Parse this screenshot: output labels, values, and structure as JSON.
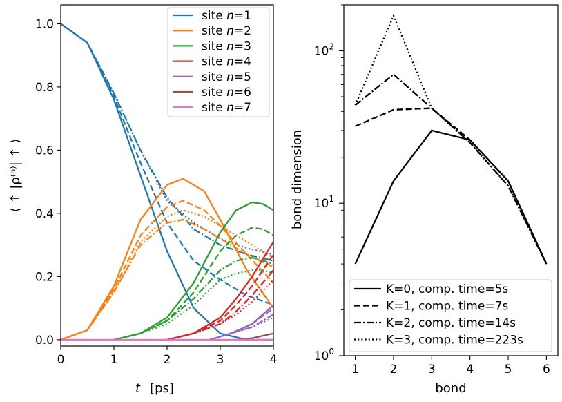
{
  "chart_data": [
    {
      "type": "line",
      "xlabel_var": "t",
      "xlabel_unit": "[ps]",
      "ylabel": "⟨ ↑ |ρ⁽ⁿ⁾| ↑ ⟩",
      "xlim": [
        0,
        4
      ],
      "ylim": [
        -0.02,
        1.06
      ],
      "xticks": [
        "0",
        "1",
        "2",
        "3",
        "4"
      ],
      "yticks": [
        "0.0",
        "0.2",
        "0.4",
        "0.6",
        "0.8",
        "1.0"
      ],
      "legend_position": "upper-right",
      "legend": [
        {
          "label": "site n=1",
          "prefix": "site ",
          "var": "n",
          "suffix": "=1",
          "color": "#1f77b4"
        },
        {
          "label": "site n=2",
          "prefix": "site ",
          "var": "n",
          "suffix": "=2",
          "color": "#ff7f0e"
        },
        {
          "label": "site n=3",
          "prefix": "site ",
          "var": "n",
          "suffix": "=3",
          "color": "#2ca02c"
        },
        {
          "label": "site n=4",
          "prefix": "site ",
          "var": "n",
          "suffix": "=4",
          "color": "#d62728"
        },
        {
          "label": "site n=5",
          "prefix": "site ",
          "var": "n",
          "suffix": "=5",
          "color": "#9467bd"
        },
        {
          "label": "site n=6",
          "prefix": "site ",
          "var": "n",
          "suffix": "=6",
          "color": "#8c564b"
        },
        {
          "label": "site n=7",
          "prefix": "site ",
          "var": "n",
          "suffix": "=7",
          "color": "#e377c2"
        }
      ],
      "line_styles": [
        "solid",
        "dashed",
        "dashdot",
        "dotted"
      ],
      "series": [
        {
          "name": "site n=1",
          "K": 0,
          "color": "#1f77b4",
          "style": "solid",
          "x": [
            0,
            0.5,
            1,
            1.5,
            2,
            2.5,
            3,
            3.5,
            4
          ],
          "y": [
            1.0,
            0.94,
            0.76,
            0.52,
            0.28,
            0.1,
            0.02,
            0.0,
            0.0
          ]
        },
        {
          "name": "site n=1",
          "K": 1,
          "color": "#1f77b4",
          "style": "dashed",
          "x": [
            0,
            0.5,
            1,
            1.5,
            2,
            2.5,
            3,
            3.5,
            4
          ],
          "y": [
            1.0,
            0.94,
            0.77,
            0.56,
            0.37,
            0.25,
            0.19,
            0.14,
            0.11
          ]
        },
        {
          "name": "site n=1",
          "K": 2,
          "color": "#1f77b4",
          "style": "dashdot",
          "x": [
            0,
            0.5,
            1,
            1.5,
            2,
            2.5,
            3,
            3.5,
            4
          ],
          "y": [
            1.0,
            0.94,
            0.78,
            0.6,
            0.45,
            0.35,
            0.3,
            0.27,
            0.25
          ]
        },
        {
          "name": "site n=1",
          "K": 3,
          "color": "#1f77b4",
          "style": "dotted",
          "x": [
            0,
            0.5,
            1,
            1.5,
            2,
            2.5,
            3,
            3.5,
            4
          ],
          "y": [
            1.0,
            0.94,
            0.78,
            0.6,
            0.44,
            0.37,
            0.32,
            0.29,
            0.27
          ]
        },
        {
          "name": "site n=2",
          "K": 0,
          "color": "#ff7f0e",
          "style": "solid",
          "x": [
            0,
            0.5,
            1,
            1.5,
            2,
            2.3,
            2.7,
            3,
            3.5,
            4
          ],
          "y": [
            0.0,
            0.03,
            0.17,
            0.38,
            0.49,
            0.51,
            0.47,
            0.38,
            0.22,
            0.1
          ]
        },
        {
          "name": "site n=2",
          "K": 1,
          "color": "#ff7f0e",
          "style": "dashed",
          "x": [
            0,
            0.5,
            1,
            1.5,
            2,
            2.3,
            2.7,
            3,
            3.5,
            4
          ],
          "y": [
            0.0,
            0.03,
            0.16,
            0.33,
            0.42,
            0.44,
            0.41,
            0.36,
            0.27,
            0.18
          ]
        },
        {
          "name": "site n=2",
          "K": 2,
          "color": "#ff7f0e",
          "style": "dashdot",
          "x": [
            0,
            0.5,
            1,
            1.5,
            2,
            2.3,
            2.7,
            3,
            3.5,
            4
          ],
          "y": [
            0.0,
            0.03,
            0.15,
            0.3,
            0.37,
            0.38,
            0.35,
            0.32,
            0.27,
            0.23
          ]
        },
        {
          "name": "site n=2",
          "K": 3,
          "color": "#ff7f0e",
          "style": "dotted",
          "x": [
            0,
            0.5,
            1,
            1.5,
            2,
            2.3,
            2.7,
            3,
            3.5,
            4
          ],
          "y": [
            0.0,
            0.03,
            0.15,
            0.31,
            0.39,
            0.41,
            0.39,
            0.36,
            0.31,
            0.26
          ]
        },
        {
          "name": "site n=3",
          "K": 0,
          "color": "#2ca02c",
          "style": "solid",
          "x": [
            1,
            1.5,
            2,
            2.5,
            3,
            3.3,
            3.6,
            3.8,
            4
          ],
          "y": [
            0.0,
            0.02,
            0.07,
            0.18,
            0.34,
            0.41,
            0.435,
            0.43,
            0.41
          ]
        },
        {
          "name": "site n=3",
          "K": 1,
          "color": "#2ca02c",
          "style": "dashed",
          "x": [
            1,
            1.5,
            2,
            2.5,
            3,
            3.3,
            3.6,
            3.8,
            4
          ],
          "y": [
            0.0,
            0.02,
            0.06,
            0.15,
            0.28,
            0.33,
            0.355,
            0.35,
            0.33
          ]
        },
        {
          "name": "site n=3",
          "K": 2,
          "color": "#2ca02c",
          "style": "dashdot",
          "x": [
            1,
            1.5,
            2,
            2.5,
            3,
            3.3,
            3.6,
            3.8,
            4
          ],
          "y": [
            0.0,
            0.02,
            0.06,
            0.13,
            0.22,
            0.25,
            0.26,
            0.25,
            0.24
          ]
        },
        {
          "name": "site n=3",
          "K": 3,
          "color": "#2ca02c",
          "style": "dotted",
          "x": [
            1,
            1.5,
            2,
            2.5,
            3,
            3.3,
            3.6,
            3.8,
            4
          ],
          "y": [
            0.0,
            0.02,
            0.05,
            0.11,
            0.19,
            0.21,
            0.22,
            0.22,
            0.21
          ]
        },
        {
          "name": "site n=4",
          "K": 0,
          "color": "#d62728",
          "style": "solid",
          "x": [
            2,
            2.5,
            3,
            3.3,
            3.6,
            4
          ],
          "y": [
            0.0,
            0.02,
            0.07,
            0.13,
            0.2,
            0.31
          ]
        },
        {
          "name": "site n=4",
          "K": 1,
          "color": "#d62728",
          "style": "dashed",
          "x": [
            2,
            2.5,
            3,
            3.3,
            3.6,
            4
          ],
          "y": [
            0.0,
            0.02,
            0.06,
            0.11,
            0.17,
            0.27
          ]
        },
        {
          "name": "site n=4",
          "K": 2,
          "color": "#d62728",
          "style": "dashdot",
          "x": [
            2,
            2.5,
            3,
            3.3,
            3.6,
            4
          ],
          "y": [
            0.0,
            0.02,
            0.05,
            0.09,
            0.14,
            0.22
          ]
        },
        {
          "name": "site n=4",
          "K": 3,
          "color": "#d62728",
          "style": "dotted",
          "x": [
            2,
            2.5,
            3,
            3.3,
            3.6,
            4
          ],
          "y": [
            0.0,
            0.02,
            0.05,
            0.08,
            0.12,
            0.19
          ]
        },
        {
          "name": "site n=5",
          "K": 0,
          "color": "#9467bd",
          "style": "solid",
          "x": [
            2.8,
            3.2,
            3.6,
            4
          ],
          "y": [
            0.0,
            0.02,
            0.05,
            0.11
          ]
        },
        {
          "name": "site n=5",
          "K": 1,
          "color": "#9467bd",
          "style": "dashed",
          "x": [
            2.8,
            3.2,
            3.6,
            4
          ],
          "y": [
            0.0,
            0.02,
            0.05,
            0.1
          ]
        },
        {
          "name": "site n=5",
          "K": 2,
          "color": "#9467bd",
          "style": "dashdot",
          "x": [
            2.8,
            3.2,
            3.6,
            4
          ],
          "y": [
            0.0,
            0.02,
            0.04,
            0.08
          ]
        },
        {
          "name": "site n=5",
          "K": 3,
          "color": "#9467bd",
          "style": "dotted",
          "x": [
            2.8,
            3.2,
            3.6,
            4
          ],
          "y": [
            0.0,
            0.02,
            0.04,
            0.07
          ]
        },
        {
          "name": "site n=6",
          "K": 0,
          "color": "#8c564b",
          "style": "solid",
          "x": [
            3.3,
            3.6,
            4
          ],
          "y": [
            0.0,
            0.005,
            0.02
          ]
        },
        {
          "name": "site n=7",
          "K": 0,
          "color": "#e377c2",
          "style": "solid",
          "x": [
            0,
            4
          ],
          "y": [
            0.0,
            0.0
          ]
        }
      ]
    },
    {
      "type": "line",
      "xlabel": "bond",
      "ylabel": "bond dimension",
      "yscale": "log",
      "xlim": [
        0.7,
        6.3
      ],
      "ylim": [
        1,
        200
      ],
      "xticks": [
        "1",
        "2",
        "3",
        "4",
        "5",
        "6"
      ],
      "yticks": [
        {
          "base": "10",
          "exp": "0"
        },
        {
          "base": "10",
          "exp": "1"
        },
        {
          "base": "10",
          "exp": "2"
        }
      ],
      "legend_position": "lower-left",
      "series": [
        {
          "name": "K=0, comp. time=5s",
          "style": "solid",
          "x": [
            1,
            2,
            3,
            4,
            5,
            6
          ],
          "y": [
            4,
            14,
            30,
            26,
            14,
            4
          ]
        },
        {
          "name": "K=1, comp. time=7s",
          "style": "dashed",
          "x": [
            1,
            2,
            3,
            4,
            5,
            6
          ],
          "y": [
            32,
            41,
            42,
            26,
            14,
            4
          ]
        },
        {
          "name": "K=2, comp. time=14s",
          "style": "dashdot",
          "x": [
            1,
            2,
            3,
            4,
            5,
            6
          ],
          "y": [
            44,
            70,
            42,
            25,
            13,
            4
          ]
        },
        {
          "name": "K=3, comp. time=223s",
          "style": "dotted",
          "x": [
            1,
            2,
            3,
            4,
            5,
            6
          ],
          "y": [
            44,
            170,
            42,
            25,
            13,
            4
          ]
        }
      ]
    }
  ]
}
